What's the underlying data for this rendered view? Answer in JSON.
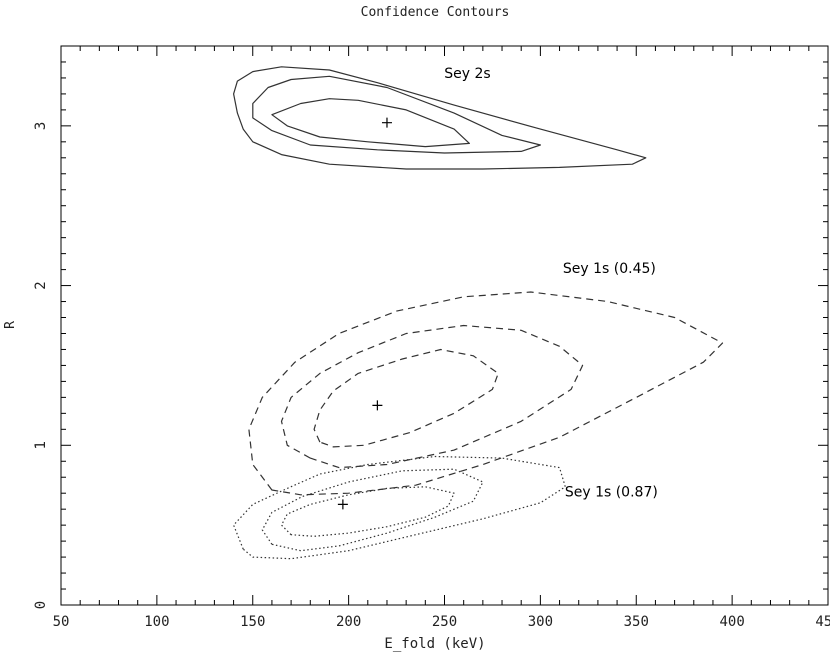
{
  "chart_data": {
    "type": "line",
    "title": "Confidence Contours",
    "xlabel": "E_fold (keV)",
    "ylabel": "R",
    "xlim": [
      50,
      450
    ],
    "ylim": [
      0,
      3.5
    ],
    "xticks": [
      50,
      100,
      150,
      200,
      250,
      300,
      350,
      400,
      450
    ],
    "yticks": [
      0,
      1,
      2,
      3
    ],
    "grid": false,
    "series": [
      {
        "name": "Sey 2s",
        "style": "solid",
        "best_fit": [
          220,
          3.02
        ],
        "contours": [
          [
            [
              160,
              3.07
            ],
            [
              175,
              3.14
            ],
            [
              190,
              3.17
            ],
            [
              205,
              3.16
            ],
            [
              230,
              3.1
            ],
            [
              255,
              2.98
            ],
            [
              263,
              2.89
            ],
            [
              240,
              2.87
            ],
            [
              210,
              2.9
            ],
            [
              185,
              2.93
            ],
            [
              168,
              3.0
            ],
            [
              160,
              3.07
            ]
          ],
          [
            [
              150,
              3.14
            ],
            [
              158,
              3.24
            ],
            [
              170,
              3.29
            ],
            [
              190,
              3.31
            ],
            [
              220,
              3.24
            ],
            [
              255,
              3.08
            ],
            [
              280,
              2.94
            ],
            [
              300,
              2.88
            ],
            [
              290,
              2.84
            ],
            [
              250,
              2.83
            ],
            [
              215,
              2.85
            ],
            [
              180,
              2.88
            ],
            [
              160,
              2.97
            ],
            [
              150,
              3.05
            ],
            [
              150,
              3.14
            ]
          ],
          [
            [
              140,
              3.2
            ],
            [
              142,
              3.28
            ],
            [
              150,
              3.34
            ],
            [
              165,
              3.37
            ],
            [
              190,
              3.35
            ],
            [
              215,
              3.27
            ],
            [
              255,
              3.13
            ],
            [
              300,
              2.98
            ],
            [
              340,
              2.85
            ],
            [
              355,
              2.8
            ],
            [
              348,
              2.76
            ],
            [
              310,
              2.74
            ],
            [
              270,
              2.73
            ],
            [
              230,
              2.73
            ],
            [
              190,
              2.76
            ],
            [
              165,
              2.82
            ],
            [
              150,
              2.9
            ],
            [
              145,
              2.98
            ],
            [
              142,
              3.08
            ],
            [
              140,
              3.2
            ]
          ]
        ]
      },
      {
        "name": "Sey 1s (0.45)",
        "style": "dashed",
        "best_fit": [
          215,
          1.25
        ],
        "contours": [
          [
            [
              185,
              1.02
            ],
            [
              182,
              1.1
            ],
            [
              185,
              1.22
            ],
            [
              192,
              1.34
            ],
            [
              205,
              1.45
            ],
            [
              228,
              1.54
            ],
            [
              248,
              1.6
            ],
            [
              265,
              1.56
            ],
            [
              278,
              1.45
            ],
            [
              275,
              1.35
            ],
            [
              255,
              1.2
            ],
            [
              232,
              1.08
            ],
            [
              208,
              1.0
            ],
            [
              192,
              0.99
            ],
            [
              185,
              1.02
            ]
          ],
          [
            [
              180,
              0.92
            ],
            [
              168,
              1.0
            ],
            [
              165,
              1.15
            ],
            [
              170,
              1.3
            ],
            [
              185,
              1.45
            ],
            [
              205,
              1.58
            ],
            [
              230,
              1.7
            ],
            [
              260,
              1.75
            ],
            [
              290,
              1.72
            ],
            [
              310,
              1.62
            ],
            [
              322,
              1.5
            ],
            [
              316,
              1.35
            ],
            [
              290,
              1.15
            ],
            [
              255,
              0.97
            ],
            [
              220,
              0.88
            ],
            [
              195,
              0.86
            ],
            [
              180,
              0.92
            ]
          ],
          [
            [
              160,
              0.72
            ],
            [
              150,
              0.88
            ],
            [
              148,
              1.1
            ],
            [
              155,
              1.3
            ],
            [
              172,
              1.52
            ],
            [
              195,
              1.7
            ],
            [
              225,
              1.84
            ],
            [
              260,
              1.93
            ],
            [
              295,
              1.96
            ],
            [
              335,
              1.9
            ],
            [
              370,
              1.8
            ],
            [
              395,
              1.64
            ],
            [
              385,
              1.52
            ],
            [
              350,
              1.3
            ],
            [
              310,
              1.05
            ],
            [
              270,
              0.88
            ],
            [
              235,
              0.75
            ],
            [
              200,
              0.7
            ],
            [
              175,
              0.69
            ],
            [
              160,
              0.72
            ]
          ]
        ]
      },
      {
        "name": "Sey 1s (0.87)",
        "style": "dotted",
        "best_fit": [
          197,
          0.63
        ],
        "contours": [
          [
            [
              170,
              0.44
            ],
            [
              165,
              0.5
            ],
            [
              168,
              0.57
            ],
            [
              180,
              0.63
            ],
            [
              200,
              0.69
            ],
            [
              220,
              0.73
            ],
            [
              240,
              0.74
            ],
            [
              255,
              0.7
            ],
            [
              252,
              0.62
            ],
            [
              240,
              0.55
            ],
            [
              220,
              0.49
            ],
            [
              200,
              0.45
            ],
            [
              182,
              0.43
            ],
            [
              170,
              0.44
            ]
          ],
          [
            [
              160,
              0.38
            ],
            [
              155,
              0.47
            ],
            [
              160,
              0.58
            ],
            [
              176,
              0.68
            ],
            [
              200,
              0.77
            ],
            [
              228,
              0.84
            ],
            [
              255,
              0.85
            ],
            [
              270,
              0.77
            ],
            [
              265,
              0.65
            ],
            [
              245,
              0.55
            ],
            [
              220,
              0.45
            ],
            [
              195,
              0.37
            ],
            [
              175,
              0.34
            ],
            [
              160,
              0.38
            ]
          ],
          [
            [
              145,
              0.35
            ],
            [
              140,
              0.5
            ],
            [
              150,
              0.63
            ],
            [
              168,
              0.73
            ],
            [
              185,
              0.82
            ],
            [
              210,
              0.88
            ],
            [
              245,
              0.93
            ],
            [
              280,
              0.92
            ],
            [
              310,
              0.86
            ],
            [
              313,
              0.74
            ],
            [
              300,
              0.64
            ],
            [
              270,
              0.54
            ],
            [
              235,
              0.44
            ],
            [
              200,
              0.34
            ],
            [
              170,
              0.29
            ],
            [
              150,
              0.3
            ],
            [
              145,
              0.35
            ]
          ]
        ]
      }
    ],
    "annotations": [
      {
        "text": "Sey 2s",
        "x": 262,
        "y": 3.3
      },
      {
        "text": "Sey 1s (0.45)",
        "x": 336,
        "y": 2.08
      },
      {
        "text": "Sey 1s (0.87)",
        "x": 337,
        "y": 0.68
      }
    ]
  }
}
